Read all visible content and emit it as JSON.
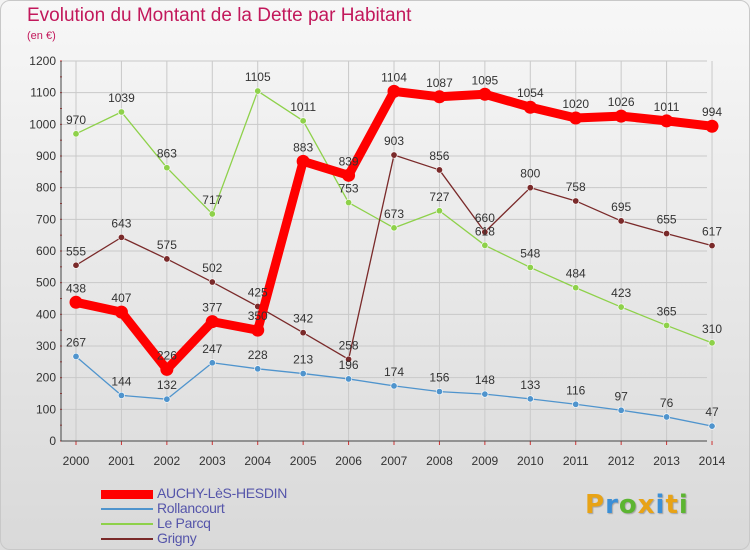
{
  "title": "Evolution du Montant de la Dette par Habitant",
  "subtitle": "(en €)",
  "logo": {
    "text": "Proxiti",
    "colors": [
      "#e8a316",
      "#3b8fd6",
      "#5cb531",
      "#e8a316",
      "#3b8fd6",
      "#e8a316",
      "#5cb531"
    ]
  },
  "chart_data": {
    "type": "line",
    "title": "Evolution du Montant de la Dette par Habitant",
    "ylabel": "(en €)",
    "xlabel": "",
    "x": [
      "2000",
      "2001",
      "2002",
      "2003",
      "2004",
      "2005",
      "2006",
      "2007",
      "2008",
      "2009",
      "2010",
      "2011",
      "2012",
      "2013",
      "2014"
    ],
    "ylim": [
      0,
      1200
    ],
    "yticks": [
      "0",
      "100",
      "200",
      "300",
      "400",
      "500",
      "600",
      "700",
      "800",
      "900",
      "1000",
      "1100",
      "1200"
    ],
    "grid": true,
    "legend_position": "bottom-left",
    "series": [
      {
        "name": "AUCHY-LèS-HESDIN",
        "color": "#ff0000",
        "values": [
          438,
          407,
          226,
          377,
          350,
          883,
          839,
          1104,
          1087,
          1095,
          1054,
          1020,
          1026,
          1011,
          994
        ],
        "labels": [
          "438",
          "407",
          "226",
          "377",
          "350",
          "883",
          "839",
          "1104",
          "1087",
          "1095",
          "1054",
          "1020",
          "1026",
          "1011",
          "994"
        ]
      },
      {
        "name": "Rollancourt",
        "color": "#4f94cd",
        "values": [
          267,
          144,
          132,
          247,
          228,
          213,
          196,
          174,
          156,
          148,
          133,
          116,
          97,
          76,
          47
        ],
        "labels": [
          "267",
          "144",
          "132",
          "247",
          "228",
          "213",
          "196",
          "174",
          "156",
          "148",
          "133",
          "116",
          "97",
          "76",
          "47"
        ]
      },
      {
        "name": "Le Parcq",
        "color": "#8ed14a",
        "values": [
          970,
          1039,
          863,
          717,
          1105,
          1011,
          753,
          673,
          727,
          618,
          548,
          484,
          423,
          365,
          310
        ],
        "labels": [
          "970",
          "1039",
          "863",
          "717",
          "1105",
          "1011",
          "753",
          "673",
          "727",
          "618",
          "548",
          "484",
          "423",
          "365",
          "310"
        ]
      },
      {
        "name": "Grigny",
        "color": "#7a2a2a",
        "values": [
          555,
          643,
          575,
          502,
          425,
          342,
          258,
          903,
          856,
          660,
          800,
          758,
          695,
          655,
          617
        ],
        "labels": [
          "555",
          "643",
          "575",
          "502",
          "425",
          "342",
          "258",
          "903",
          "856",
          "660",
          "800",
          "758",
          "695",
          "655",
          "617"
        ]
      }
    ]
  }
}
